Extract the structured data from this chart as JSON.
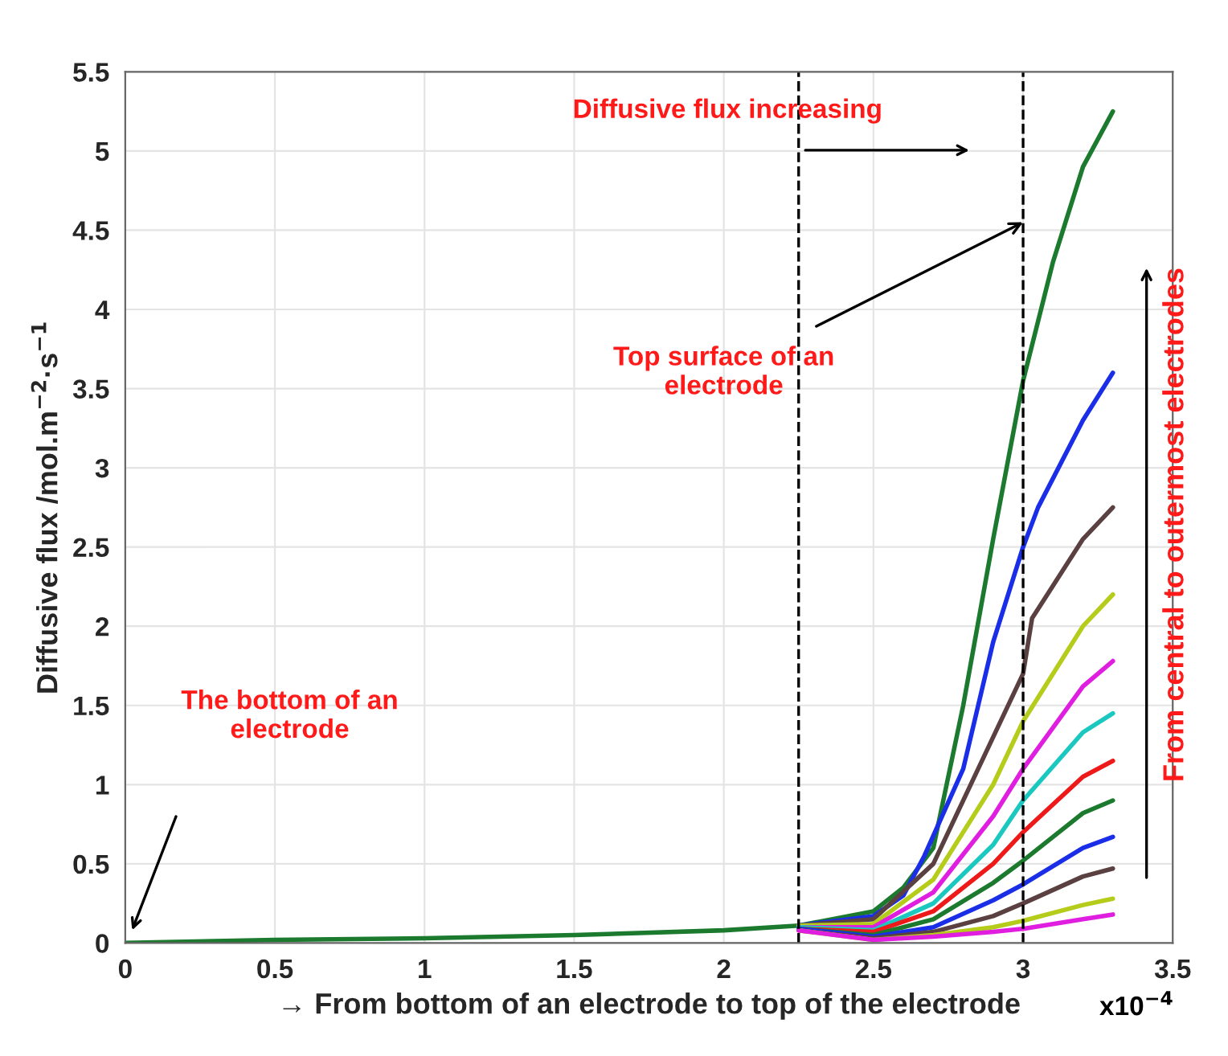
{
  "chart_data": {
    "type": "line",
    "xlabel": "→ From bottom of an electrode to top of the electrode",
    "ylabel": "Diffusive flux /mol.m$^{−2}$·s$^{−1}$",
    "xlim": [
      0,
      3.5
    ],
    "xticks": [
      0,
      0.5,
      1,
      1.5,
      2,
      2.5,
      3,
      3.5
    ],
    "ylim": [
      0,
      5.5
    ],
    "yticks": [
      0,
      0.5,
      1,
      1.5,
      2,
      2.5,
      3,
      3.5,
      4,
      4.5,
      5,
      5.5
    ],
    "grid": true,
    "line_style": "solid",
    "marker": "none",
    "series": [
      {
        "color": "#1b7a2e",
        "x": [
          0,
          0.5,
          1,
          1.5,
          2,
          2.25,
          2.5,
          2.6,
          2.7,
          2.8,
          2.9,
          3.0,
          3.1,
          3.2,
          3.3
        ],
        "values": [
          0.0,
          0.02,
          0.03,
          0.05,
          0.08,
          0.11,
          0.2,
          0.35,
          0.6,
          1.5,
          2.55,
          3.55,
          4.3,
          4.9,
          5.25
        ]
      },
      {
        "color": "#1a2ee8",
        "x": [
          2.25,
          2.5,
          2.6,
          2.67,
          2.8,
          2.9,
          3.0,
          3.05,
          3.2,
          3.3
        ],
        "values": [
          0.11,
          0.17,
          0.3,
          0.55,
          1.1,
          1.9,
          2.5,
          2.75,
          3.3,
          3.6
        ]
      },
      {
        "color": "#5a4040",
        "x": [
          2.25,
          2.5,
          2.7,
          2.9,
          3.0,
          3.03,
          3.2,
          3.3
        ],
        "values": [
          0.11,
          0.15,
          0.5,
          1.3,
          1.7,
          2.05,
          2.55,
          2.75
        ]
      },
      {
        "color": "#b5cc1a",
        "x": [
          2.25,
          2.5,
          2.7,
          2.9,
          3.0,
          3.2,
          3.3
        ],
        "values": [
          0.11,
          0.12,
          0.4,
          1.0,
          1.4,
          2.0,
          2.2
        ]
      },
      {
        "color": "#e01ee0",
        "x": [
          2.25,
          2.5,
          2.7,
          2.9,
          3.0,
          3.2,
          3.3
        ],
        "values": [
          0.1,
          0.1,
          0.32,
          0.8,
          1.1,
          1.62,
          1.78
        ]
      },
      {
        "color": "#1ac8c0",
        "x": [
          2.25,
          2.5,
          2.7,
          2.9,
          3.0,
          3.2,
          3.3
        ],
        "values": [
          0.1,
          0.08,
          0.25,
          0.62,
          0.9,
          1.33,
          1.45
        ]
      },
      {
        "color": "#ee1a1a",
        "x": [
          2.25,
          2.5,
          2.7,
          2.9,
          3.0,
          3.2,
          3.3
        ],
        "values": [
          0.09,
          0.07,
          0.2,
          0.5,
          0.7,
          1.05,
          1.15
        ]
      },
      {
        "color": "#1b7a2e",
        "x": [
          2.25,
          2.5,
          2.7,
          2.9,
          3.0,
          3.2,
          3.3
        ],
        "values": [
          0.09,
          0.05,
          0.15,
          0.38,
          0.52,
          0.82,
          0.9
        ]
      },
      {
        "color": "#1a2ee8",
        "x": [
          2.25,
          2.5,
          2.7,
          2.9,
          3.0,
          3.2,
          3.3
        ],
        "values": [
          0.09,
          0.04,
          0.1,
          0.27,
          0.37,
          0.6,
          0.67
        ]
      },
      {
        "color": "#5a4040",
        "x": [
          2.25,
          2.5,
          2.7,
          2.9,
          3.0,
          3.2,
          3.3
        ],
        "values": [
          0.08,
          0.03,
          0.07,
          0.17,
          0.25,
          0.42,
          0.47
        ]
      },
      {
        "color": "#b5cc1a",
        "x": [
          2.25,
          2.5,
          2.7,
          2.9,
          3.0,
          3.2,
          3.3
        ],
        "values": [
          0.08,
          0.02,
          0.05,
          0.1,
          0.14,
          0.24,
          0.28
        ]
      },
      {
        "color": "#e01ee0",
        "x": [
          2.25,
          2.5,
          2.7,
          2.9,
          3.0,
          3.2,
          3.3
        ],
        "values": [
          0.08,
          0.02,
          0.04,
          0.07,
          0.09,
          0.15,
          0.18
        ]
      }
    ],
    "ref_lines": [
      {
        "axis": "x",
        "value": 2.25,
        "color": "#000000",
        "line_style": "dashed"
      },
      {
        "axis": "x",
        "value": 3.0,
        "color": "#000000",
        "line_style": "dashed"
      }
    ],
    "annotations": [
      "x10$^{−4}$",
      "Diffusive flux increasing",
      {
        "text": "Top surface of an\nelectrode",
        "x": 3.0,
        "y": 4.55
      },
      "The bottom of an\nelectrode",
      "From central to outermost electrodes"
    ]
  }
}
